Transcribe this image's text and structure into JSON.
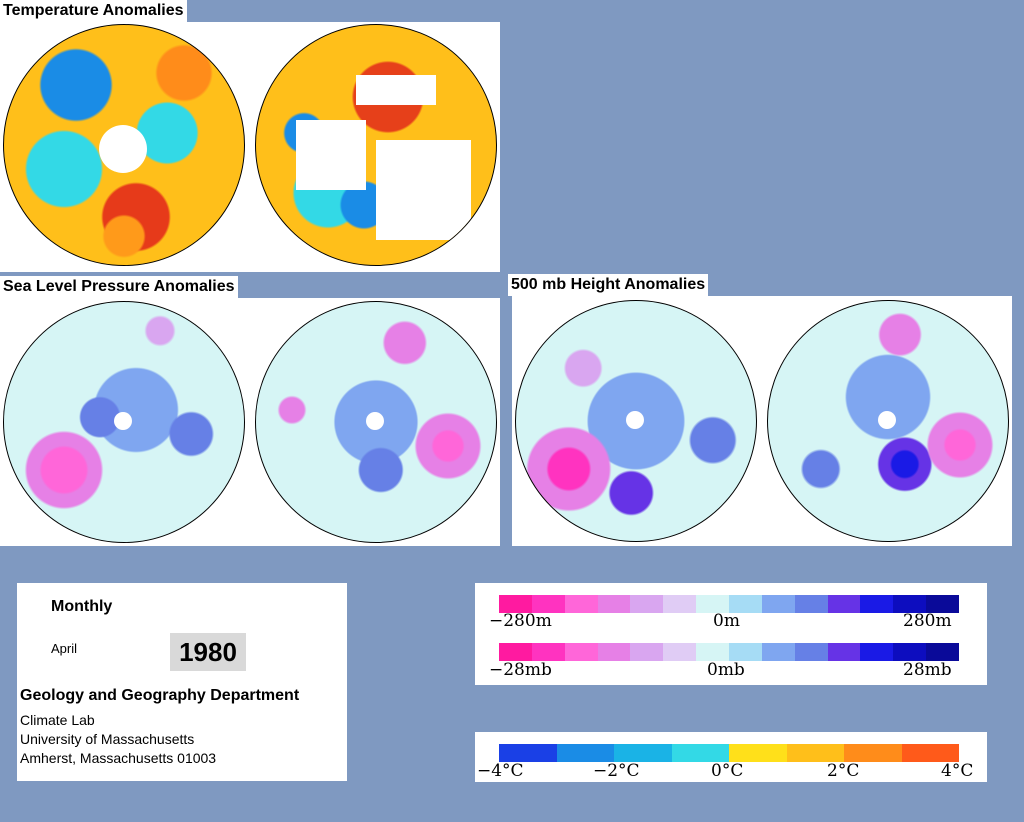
{
  "titles": {
    "temperature": "Temperature Anomalies",
    "slp": "Sea Level Pressure Anomalies",
    "height500": "500 mb Height Anomalies"
  },
  "info": {
    "period": "Monthly",
    "month": "April",
    "year": "1980",
    "department": "Geology and Geography Department",
    "line1": "Climate Lab",
    "line2": "University of Massachusetts",
    "line3": "Amherst, Massachusetts 01003"
  },
  "legend_height": {
    "min_label": "−280m",
    "mid_label": "0m",
    "max_label": "280m"
  },
  "legend_pressure": {
    "min_label": "−28mb",
    "mid_label": "0mb",
    "max_label": "28mb"
  },
  "legend_temperature": {
    "labels": [
      "−4°C",
      "−2°C",
      "0°C",
      "2°C",
      "4°C"
    ]
  },
  "colors": {
    "background": "#7f99c1",
    "anomaly_scale": [
      "#ff1aa0",
      "#ff33c0",
      "#ff66d9",
      "#e680e6",
      "#d9a6f0",
      "#e0ccf5",
      "#d6f5f5",
      "#a6dcf5",
      "#7fa6f0",
      "#6680e6",
      "#6633e6",
      "#1a1ae6",
      "#0d0dbf",
      "#0a0a99"
    ],
    "temp_scale": [
      "#1a40e6",
      "#1a8ce6",
      "#1ab3e6",
      "#33d9e6",
      "#ffe01a",
      "#ffbf1a",
      "#ff8c1a",
      "#ff5a1a"
    ]
  }
}
